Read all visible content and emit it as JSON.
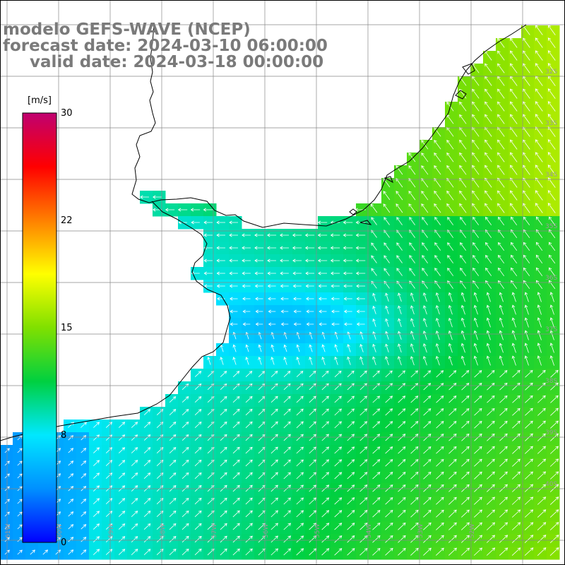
{
  "title": {
    "line1": "modelo GEFS-WAVE (NCEP)",
    "line2": "forecast date: 2024-03-10 06:00:00",
    "line3": "valid date: 2024-03-18 00:00:00"
  },
  "colorbar": {
    "unit": "[m/s]",
    "ticks": [
      30,
      22,
      15,
      8,
      0
    ],
    "range": [
      0,
      30
    ],
    "colors": [
      "#0000ff",
      "#0090ff",
      "#00e8ff",
      "#00d040",
      "#80e000",
      "#ffff00",
      "#ff8000",
      "#ff0000",
      "#c00070"
    ]
  },
  "grid": {
    "lat_labels": [
      "32S",
      "33S",
      "34S",
      "35S",
      "36S",
      "37S",
      "38S",
      "39S",
      "40S"
    ],
    "lon_labels": [
      "61W",
      "60W",
      "59W",
      "58W",
      "57W",
      "56W",
      "55W",
      "54W",
      "53W",
      "52W"
    ]
  },
  "legend_colors": {
    "land": "#ffffff",
    "coast": "#000000",
    "grid": "#888888"
  }
}
